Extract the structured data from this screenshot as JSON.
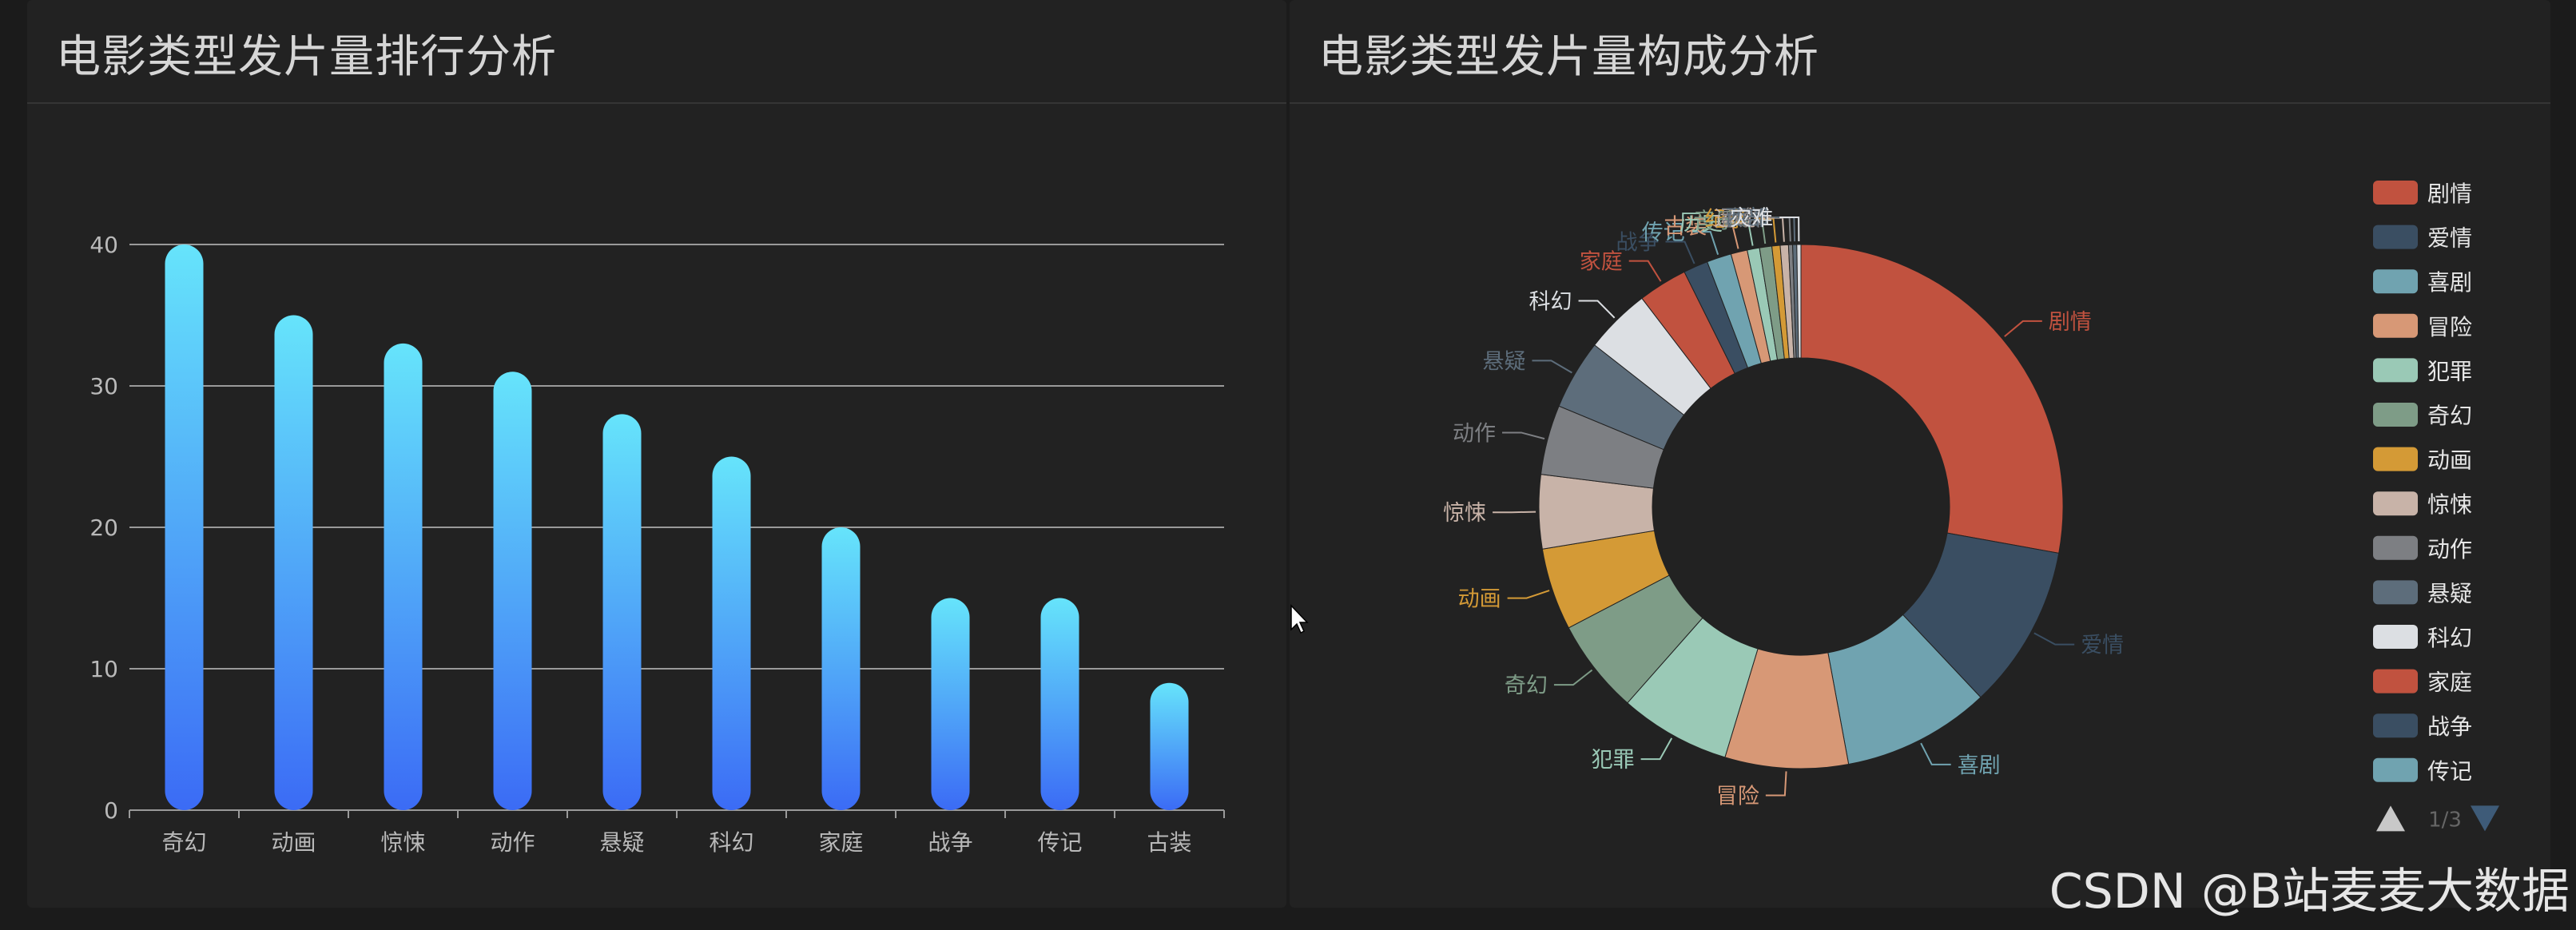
{
  "left_panel": {
    "title": "电影类型发片量排行分析"
  },
  "right_panel": {
    "title": "电影类型发片量构成分析"
  },
  "watermark": "CSDN @B站麦麦大数据",
  "colors": {
    "bar_top": "#66e4fb",
    "bar_bottom": "#3b6bf5",
    "pie": [
      "#c1523f",
      "#3a4e62",
      "#70a3b0",
      "#d79876",
      "#9ac9b6",
      "#7e9c87",
      "#d49a36",
      "#c8b3a8",
      "#7d7f83",
      "#5d6d7b",
      "#dcdfe3",
      "#c1523f",
      "#3a4e62",
      "#70a3b0",
      "#d79876",
      "#9ac9b6",
      "#7e9c87",
      "#d49a36",
      "#c8b3a8",
      "#7d7f83",
      "#5d6d7b",
      "#dcdfe3"
    ]
  },
  "chart_data": [
    {
      "type": "bar",
      "categories": [
        "奇幻",
        "动画",
        "惊悚",
        "动作",
        "悬疑",
        "科幻",
        "家庭",
        "战争",
        "传记",
        "古装"
      ],
      "values": [
        40,
        35,
        33,
        31,
        28,
        25,
        20,
        15,
        15,
        9
      ],
      "ylim": [
        0,
        40
      ],
      "yticks": [
        "0",
        "10",
        "20",
        "30",
        "40"
      ],
      "grid": true
    },
    {
      "type": "pie",
      "donut": true,
      "labels": [
        "剧情",
        "爱情",
        "喜剧",
        "冒险",
        "犯罪",
        "奇幻",
        "动画",
        "惊悚",
        "动作",
        "悬疑",
        "科幻",
        "家庭",
        "战争",
        "传记",
        "古装",
        "历史",
        "音乐",
        "纪录",
        "运动",
        "歌舞",
        "西部",
        "灾难"
      ],
      "values": [
        110,
        40,
        36,
        30,
        27,
        23,
        20,
        18,
        17,
        17,
        16,
        12,
        6,
        6,
        4,
        3,
        3,
        2,
        2,
        1,
        1,
        1
      ],
      "legend": {
        "position": "right",
        "visible_items": [
          "剧情",
          "爱情",
          "喜剧",
          "冒险",
          "犯罪",
          "奇幻",
          "动画",
          "惊悚",
          "动作",
          "悬疑",
          "科幻",
          "家庭",
          "战争",
          "传记"
        ],
        "page_info": "1/3"
      }
    }
  ]
}
